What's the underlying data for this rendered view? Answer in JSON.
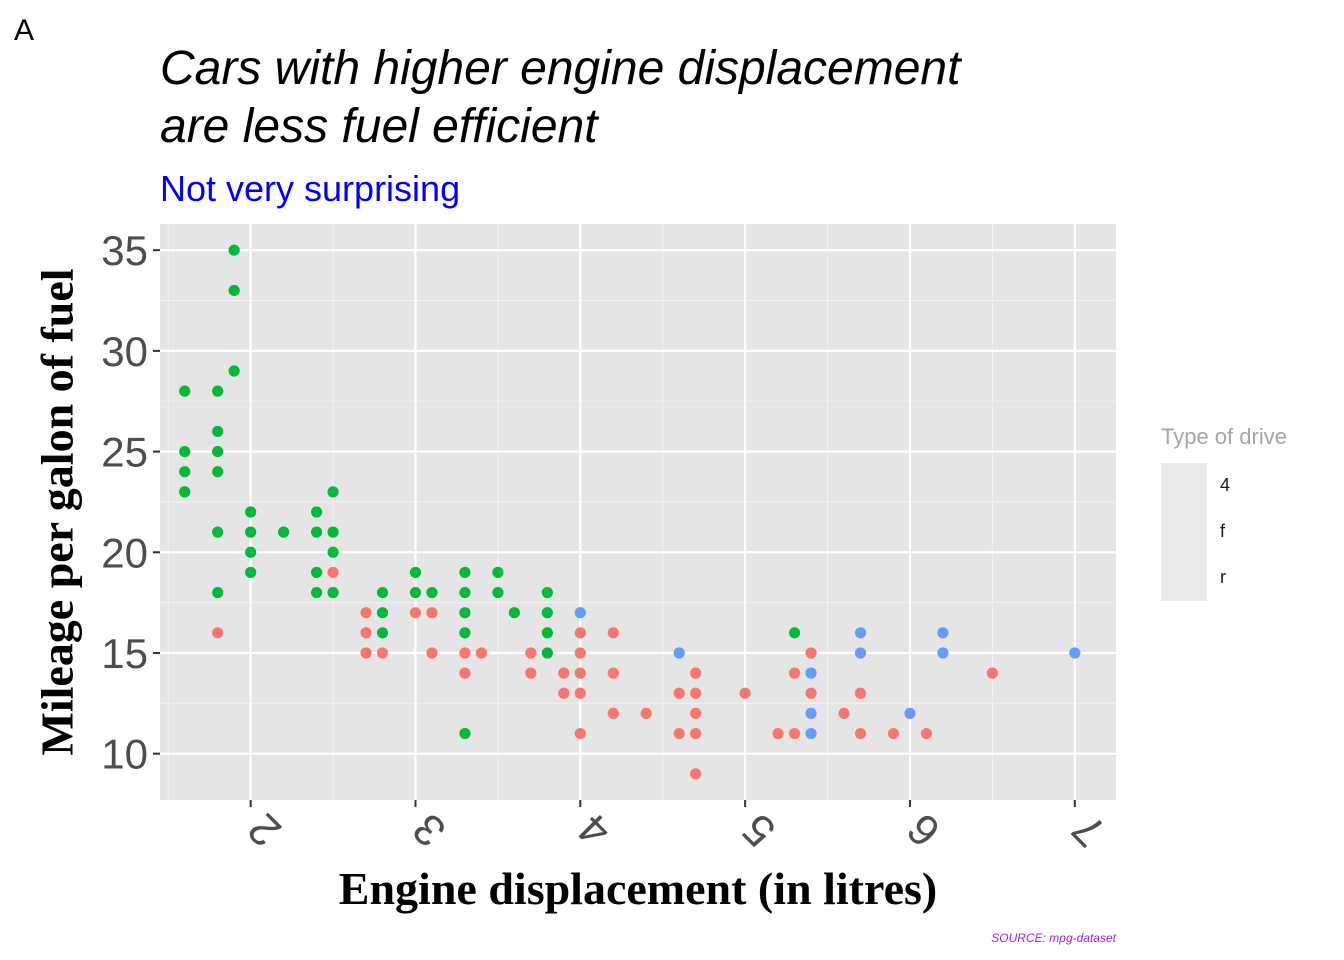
{
  "tag": "A",
  "chart_data": {
    "type": "scatter",
    "title_lines": [
      "Cars with higher engine displacement",
      "are less fuel efficient"
    ],
    "subtitle": "Not very surprising",
    "xlabel": "Engine displacement (in litres)",
    "ylabel": "Mileage per galon of fuel",
    "caption": "SOURCE: mpg-dataset",
    "xlim": [
      1.45,
      7.25
    ],
    "ylim": [
      7.7,
      36.3
    ],
    "x_ticks": [
      2,
      3,
      4,
      5,
      6,
      7
    ],
    "x_tick_labels": [
      "2",
      "3",
      "4",
      "5",
      "6",
      "7"
    ],
    "y_ticks": [
      10,
      15,
      20,
      25,
      30,
      35
    ],
    "y_tick_labels": [
      "10",
      "15",
      "20",
      "25",
      "30",
      "35"
    ],
    "grid": true,
    "legend": {
      "title": "Type of drive",
      "position": "right",
      "entries": [
        {
          "label": "4",
          "color": "#F8766D"
        },
        {
          "label": "f",
          "color": "#00BA38"
        },
        {
          "label": "r",
          "color": "#619CFF"
        }
      ]
    },
    "series": [
      {
        "name": "4",
        "color": "#F8766D",
        "points": [
          [
            1.8,
            16
          ],
          [
            2.5,
            19
          ],
          [
            2.5,
            18
          ],
          [
            2.7,
            17
          ],
          [
            2.7,
            16
          ],
          [
            2.7,
            15
          ],
          [
            2.8,
            15
          ],
          [
            3.0,
            17
          ],
          [
            3.1,
            17
          ],
          [
            3.1,
            15
          ],
          [
            3.3,
            15
          ],
          [
            3.3,
            14
          ],
          [
            3.4,
            15
          ],
          [
            3.7,
            15
          ],
          [
            3.7,
            14
          ],
          [
            3.9,
            14
          ],
          [
            3.9,
            13
          ],
          [
            4.0,
            16
          ],
          [
            4.0,
            15
          ],
          [
            4.0,
            14
          ],
          [
            4.0,
            13
          ],
          [
            4.0,
            11
          ],
          [
            4.2,
            16
          ],
          [
            4.2,
            14
          ],
          [
            4.2,
            12
          ],
          [
            4.4,
            12
          ],
          [
            4.6,
            13
          ],
          [
            4.6,
            11
          ],
          [
            4.7,
            14
          ],
          [
            4.7,
            13
          ],
          [
            4.7,
            12
          ],
          [
            4.7,
            11
          ],
          [
            4.7,
            9
          ],
          [
            5.0,
            13
          ],
          [
            5.2,
            11
          ],
          [
            5.3,
            14
          ],
          [
            5.3,
            11
          ],
          [
            5.4,
            15
          ],
          [
            5.4,
            13
          ],
          [
            5.6,
            12
          ],
          [
            5.7,
            13
          ],
          [
            5.7,
            11
          ],
          [
            5.9,
            11
          ],
          [
            6.1,
            11
          ],
          [
            6.5,
            14
          ]
        ]
      },
      {
        "name": "f",
        "color": "#00BA38",
        "points": [
          [
            1.6,
            28
          ],
          [
            1.6,
            25
          ],
          [
            1.6,
            24
          ],
          [
            1.6,
            23
          ],
          [
            1.8,
            28
          ],
          [
            1.8,
            26
          ],
          [
            1.8,
            25
          ],
          [
            1.8,
            24
          ],
          [
            1.8,
            21
          ],
          [
            1.8,
            18
          ],
          [
            1.9,
            35
          ],
          [
            1.9,
            33
          ],
          [
            1.9,
            29
          ],
          [
            2.0,
            22
          ],
          [
            2.0,
            21
          ],
          [
            2.0,
            20
          ],
          [
            2.0,
            19
          ],
          [
            2.2,
            21
          ],
          [
            2.4,
            22
          ],
          [
            2.4,
            21
          ],
          [
            2.4,
            19
          ],
          [
            2.4,
            18
          ],
          [
            2.5,
            23
          ],
          [
            2.5,
            21
          ],
          [
            2.5,
            20
          ],
          [
            2.5,
            18
          ],
          [
            2.8,
            18
          ],
          [
            2.8,
            17
          ],
          [
            2.8,
            16
          ],
          [
            3.0,
            19
          ],
          [
            3.0,
            18
          ],
          [
            3.1,
            18
          ],
          [
            3.3,
            19
          ],
          [
            3.3,
            18
          ],
          [
            3.3,
            17
          ],
          [
            3.3,
            16
          ],
          [
            3.3,
            11
          ],
          [
            3.5,
            19
          ],
          [
            3.5,
            18
          ],
          [
            3.6,
            17
          ],
          [
            3.8,
            18
          ],
          [
            3.8,
            17
          ],
          [
            3.8,
            16
          ],
          [
            3.8,
            15
          ],
          [
            5.3,
            16
          ]
        ]
      },
      {
        "name": "r",
        "color": "#619CFF",
        "points": [
          [
            4.0,
            17
          ],
          [
            4.6,
            15
          ],
          [
            5.4,
            14
          ],
          [
            5.4,
            12
          ],
          [
            5.4,
            11
          ],
          [
            5.7,
            16
          ],
          [
            5.7,
            15
          ],
          [
            6.0,
            12
          ],
          [
            6.2,
            16
          ],
          [
            6.2,
            15
          ],
          [
            7.0,
            15
          ]
        ]
      }
    ]
  }
}
